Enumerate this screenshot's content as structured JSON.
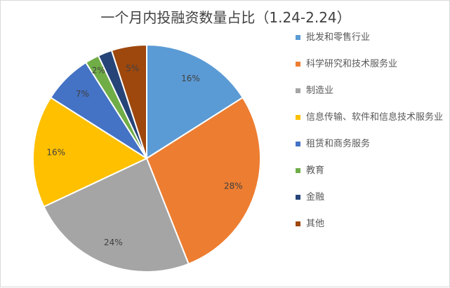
{
  "chart_data": {
    "type": "pie",
    "title": "一个月内投融资数量占比（1.24-2.24）",
    "legend_position": "right",
    "categories": [
      "批发和零售行业",
      "科学研究和技术服务业",
      "制造业",
      "信息传输、软件和信息技术服务业",
      "租赁和商务服务",
      "教育",
      "金融",
      "其他"
    ],
    "values": [
      16,
      28,
      24,
      16,
      7,
      2,
      2,
      5
    ],
    "labels": [
      "16%",
      "28%",
      "24%",
      "16%",
      "7%",
      "2%",
      "",
      "5%"
    ],
    "colors": [
      "#5b9bd5",
      "#ed7d31",
      "#a5a5a5",
      "#ffc000",
      "#4472c4",
      "#70ad47",
      "#264478",
      "#9e480e"
    ]
  }
}
